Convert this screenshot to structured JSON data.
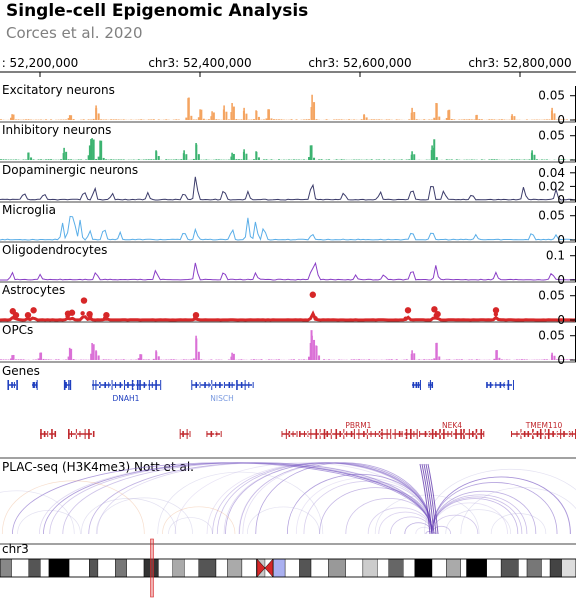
{
  "title": "Single-cell Epigenomic Analysis",
  "subtitle": "Corces et al. 2020",
  "chart_data": {
    "type": "genome-browser",
    "region": {
      "chrom": "chr3",
      "start": 52150000,
      "end": 52870000
    },
    "axis_ticks": [
      {
        "pos": 52200000,
        "label": ": 52,200,000"
      },
      {
        "pos": 52400000,
        "label": "chr3: 52,400,000"
      },
      {
        "pos": 52600000,
        "label": "chr3: 52,600,000"
      },
      {
        "pos": 52800000,
        "label": "chr3: 52,800,000"
      }
    ],
    "tracks": [
      {
        "name": "Excitatory neurons",
        "color": "#f4a460",
        "style": "bar",
        "ylim": [
          0,
          0.07
        ],
        "yticks": [
          {
            "v": 0.05,
            "label": "0.05"
          },
          {
            "v": 0,
            "label": "0"
          }
        ],
        "seed": 11,
        "peaks": [
          [
            52165000,
            0.012
          ],
          [
            52237000,
            0.01
          ],
          [
            52270000,
            0.03
          ],
          [
            52385000,
            0.045
          ],
          [
            52400000,
            0.022
          ],
          [
            52415000,
            0.018
          ],
          [
            52430000,
            0.03
          ],
          [
            52440000,
            0.035
          ],
          [
            52455000,
            0.025
          ],
          [
            52470000,
            0.02
          ],
          [
            52485000,
            0.022
          ],
          [
            52540000,
            0.052
          ],
          [
            52605000,
            0.012
          ],
          [
            52665000,
            0.025
          ],
          [
            52695000,
            0.035
          ],
          [
            52710000,
            0.02
          ],
          [
            52745000,
            0.01
          ],
          [
            52790000,
            0.012
          ],
          [
            52840000,
            0.025
          ]
        ]
      },
      {
        "name": "Inhibitory neurons",
        "color": "#3cb371",
        "style": "bar",
        "ylim": [
          0,
          0.07
        ],
        "yticks": [
          {
            "v": 0.05,
            "label": "0.05"
          },
          {
            "v": 0,
            "label": "0"
          }
        ],
        "seed": 23,
        "peaks": [
          [
            52185000,
            0.015
          ],
          [
            52230000,
            0.025
          ],
          [
            52262000,
            0.03
          ],
          [
            52265000,
            0.045
          ],
          [
            52275000,
            0.04
          ],
          [
            52345000,
            0.02
          ],
          [
            52380000,
            0.02
          ],
          [
            52395000,
            0.035
          ],
          [
            52440000,
            0.015
          ],
          [
            52455000,
            0.022
          ],
          [
            52470000,
            0.018
          ],
          [
            52538000,
            0.03
          ],
          [
            52665000,
            0.018
          ],
          [
            52690000,
            0.03
          ],
          [
            52692000,
            0.025
          ],
          [
            52815000,
            0.02
          ]
        ]
      },
      {
        "name": "Dopaminergic neurons",
        "color": "#3d3d6b",
        "style": "line",
        "ylim": [
          0,
          0.05
        ],
        "yticks": [
          {
            "v": 0.04,
            "label": "0.04"
          },
          {
            "v": 0.02,
            "label": "0.02"
          },
          {
            "v": 0,
            "label": "0"
          }
        ],
        "seed": 37,
        "peaks": [
          [
            52180000,
            0.012
          ],
          [
            52205000,
            0.01
          ],
          [
            52255000,
            0.015
          ],
          [
            52268000,
            0.02
          ],
          [
            52290000,
            0.01
          ],
          [
            52335000,
            0.01
          ],
          [
            52380000,
            0.012
          ],
          [
            52395000,
            0.038
          ],
          [
            52430000,
            0.018
          ],
          [
            52460000,
            0.012
          ],
          [
            52540000,
            0.03
          ],
          [
            52580000,
            0.012
          ],
          [
            52625000,
            0.012
          ],
          [
            52665000,
            0.02
          ],
          [
            52690000,
            0.032
          ],
          [
            52705000,
            0.015
          ],
          [
            52740000,
            0.01
          ],
          [
            52805000,
            0.02
          ],
          [
            52845000,
            0.015
          ]
        ]
      },
      {
        "name": "Microglia",
        "color": "#5aaee8",
        "style": "line",
        "ylim": [
          0,
          0.07
        ],
        "yticks": [
          {
            "v": 0.05,
            "label": "0.05"
          },
          {
            "v": 0,
            "label": "0"
          }
        ],
        "seed": 53,
        "peaks": [
          [
            52228000,
            0.035
          ],
          [
            52237000,
            0.05
          ],
          [
            52242000,
            0.06
          ],
          [
            52250000,
            0.04
          ],
          [
            52262000,
            0.02
          ],
          [
            52280000,
            0.03
          ],
          [
            52300000,
            0.015
          ],
          [
            52380000,
            0.02
          ],
          [
            52395000,
            0.025
          ],
          [
            52440000,
            0.025
          ],
          [
            52460000,
            0.045
          ],
          [
            52470000,
            0.04
          ],
          [
            52480000,
            0.03
          ],
          [
            52540000,
            0.015
          ],
          [
            52665000,
            0.02
          ],
          [
            52690000,
            0.02
          ],
          [
            52745000,
            0.01
          ],
          [
            52815000,
            0.018
          ],
          [
            52845000,
            0.01
          ]
        ]
      },
      {
        "name": "Oligodendrocytes",
        "color": "#8a3fc6",
        "style": "line",
        "ylim": [
          0,
          0.14
        ],
        "yticks": [
          {
            "v": 0.1,
            "label": "0.1"
          },
          {
            "v": 0,
            "label": "0"
          }
        ],
        "seed": 71,
        "peaks": [
          [
            52165000,
            0.03
          ],
          [
            52200000,
            0.02
          ],
          [
            52270000,
            0.035
          ],
          [
            52345000,
            0.045
          ],
          [
            52395000,
            0.08
          ],
          [
            52430000,
            0.04
          ],
          [
            52470000,
            0.03
          ],
          [
            52540000,
            0.06
          ],
          [
            52545000,
            0.07
          ],
          [
            52595000,
            0.02
          ],
          [
            52630000,
            0.025
          ],
          [
            52665000,
            0.05
          ],
          [
            52695000,
            0.06
          ],
          [
            52770000,
            0.03
          ],
          [
            52840000,
            0.035
          ]
        ]
      },
      {
        "name": "Astrocytes",
        "color": "#d62728",
        "style": "scatter",
        "ylim": [
          0,
          0.07
        ],
        "yticks": [
          {
            "v": 0.05,
            "label": "0.05"
          },
          {
            "v": 0,
            "label": "0"
          }
        ],
        "seed": 89,
        "peaks": [
          [
            52166000,
            0.018
          ],
          [
            52170000,
            0.01
          ],
          [
            52185000,
            0.01
          ],
          [
            52192000,
            0.02
          ],
          [
            52235000,
            0.013
          ],
          [
            52240000,
            0.015
          ],
          [
            52255000,
            0.04
          ],
          [
            52262000,
            0.012
          ],
          [
            52283000,
            0.01
          ],
          [
            52395000,
            0.01
          ],
          [
            52541000,
            0.052
          ],
          [
            52660000,
            0.02
          ],
          [
            52693000,
            0.022
          ],
          [
            52697000,
            0.012
          ],
          [
            52770000,
            0.02
          ]
        ]
      },
      {
        "name": "OPCs",
        "color": "#da70d6",
        "style": "bar",
        "ylim": [
          0,
          0.07
        ],
        "yticks": [
          {
            "v": 0.05,
            "label": "0.05"
          },
          {
            "v": 0,
            "label": "0"
          }
        ],
        "seed": 97,
        "peaks": [
          [
            52165000,
            0.01
          ],
          [
            52200000,
            0.015
          ],
          [
            52237000,
            0.025
          ],
          [
            52265000,
            0.035
          ],
          [
            52270000,
            0.02
          ],
          [
            52325000,
            0.012
          ],
          [
            52345000,
            0.02
          ],
          [
            52395000,
            0.05
          ],
          [
            52440000,
            0.015
          ],
          [
            52538000,
            0.035
          ],
          [
            52540000,
            0.05
          ],
          [
            52545000,
            0.03
          ],
          [
            52665000,
            0.02
          ],
          [
            52695000,
            0.035
          ],
          [
            52770000,
            0.02
          ],
          [
            52840000,
            0.015
          ]
        ]
      }
    ],
    "genes_track": {
      "name": "Genes",
      "plus_strand": [
        {
          "start": 52160000,
          "end": 52170000,
          "label": ""
        },
        {
          "start": 52190000,
          "end": 52197000,
          "label": ""
        },
        {
          "start": 52230000,
          "end": 52237000,
          "label": ""
        },
        {
          "start": 52265000,
          "end": 52350000,
          "label": "DNAH1"
        },
        {
          "start": 52390000,
          "end": 52465000,
          "label": "NISCH"
        },
        {
          "start": 52665000,
          "end": 52675000,
          "label": ""
        },
        {
          "start": 52685000,
          "end": 52690000,
          "label": ""
        },
        {
          "start": 52758000,
          "end": 52790000,
          "label": ""
        }
      ],
      "minus_strand": [
        {
          "start": 52200000,
          "end": 52218000,
          "label": ""
        },
        {
          "start": 52235000,
          "end": 52265000,
          "label": ""
        },
        {
          "start": 52375000,
          "end": 52386000,
          "label": ""
        },
        {
          "start": 52408000,
          "end": 52425000,
          "label": ""
        },
        {
          "start": 52502000,
          "end": 52520000,
          "label": ""
        },
        {
          "start": 52524000,
          "end": 52672000,
          "label": "PBRM1"
        },
        {
          "start": 52675000,
          "end": 52755000,
          "label": "NEK4"
        },
        {
          "start": 52790000,
          "end": 52870000,
          "label": "TMEM110"
        }
      ],
      "plus_color": "#1f3fbf",
      "minus_color": "#c0282d"
    },
    "plac_seq": {
      "name": "PLAC-seq (H3K4me3) Nott et al.",
      "color": "#7b5cc4",
      "anchor": 52690000
    },
    "ideogram": {
      "chrom": "chr3",
      "highlight_pos": 0.263,
      "centromere_pos": 0.46
    }
  }
}
